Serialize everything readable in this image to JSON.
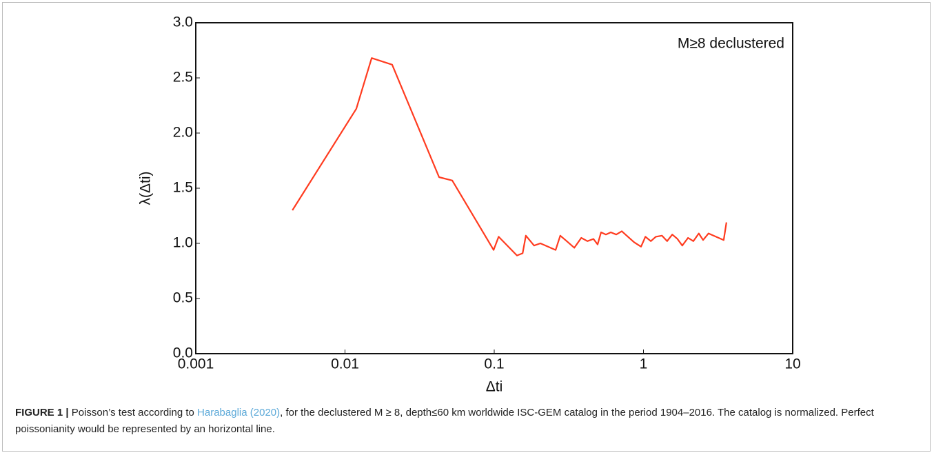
{
  "chart_data": {
    "type": "line",
    "log_x": true,
    "color": "#ff3b1f",
    "xlabel": "Δti",
    "ylabel": "λ(Δti)",
    "annotation": "M≥8 declustered",
    "xlim": [
      0.001,
      10
    ],
    "xticks": [
      0.001,
      0.01,
      0.1,
      1,
      10
    ],
    "ylim": [
      0,
      3
    ],
    "yticks": [
      {
        "value": 0,
        "label": "0.0"
      },
      0.5,
      {
        "value": 1,
        "label": "1.0"
      },
      1.5,
      {
        "value": 2,
        "label": "2.0"
      },
      2.5,
      {
        "value": 3,
        "label": "3.0"
      }
    ],
    "x": [
      0.00444,
      0.0119,
      0.0151,
      0.0207,
      0.0427,
      0.0523,
      0.099,
      0.107,
      0.142,
      0.155,
      0.163,
      0.185,
      0.204,
      0.258,
      0.277,
      0.306,
      0.344,
      0.383,
      0.421,
      0.462,
      0.493,
      0.52,
      0.56,
      0.604,
      0.657,
      0.716,
      0.787,
      0.866,
      0.963,
      1.03,
      1.12,
      1.21,
      1.33,
      1.44,
      1.56,
      1.69,
      1.82,
      1.99,
      2.16,
      2.35,
      2.51,
      2.73,
      3.45,
      3.6
    ],
    "values": [
      1.3,
      2.22,
      2.68,
      2.62,
      1.6,
      1.57,
      0.94,
      1.06,
      0.89,
      0.91,
      1.07,
      0.98,
      1.0,
      0.94,
      1.07,
      1.02,
      0.96,
      1.05,
      1.02,
      1.04,
      0.99,
      1.1,
      1.08,
      1.1,
      1.08,
      1.11,
      1.06,
      1.01,
      0.97,
      1.06,
      1.02,
      1.06,
      1.07,
      1.02,
      1.08,
      1.04,
      0.98,
      1.05,
      1.02,
      1.09,
      1.03,
      1.09,
      1.03,
      1.19
    ]
  },
  "caption": {
    "label": "FIGURE 1 |",
    "text_before": " Poisson’s test according to ",
    "citation": "Harabaglia (2020)",
    "text_after": ", for the declustered M ≥ 8, depth≤60 km worldwide ISC-GEM catalog in the period 1904–2016. The catalog is normalized. Perfect poissonianity would be represented by an horizontal line."
  }
}
